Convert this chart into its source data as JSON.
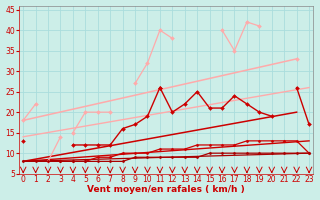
{
  "background_color": "#cceee8",
  "grid_color": "#aadddd",
  "xlabel": "Vent moyen/en rafales ( km/h )",
  "xlabel_color": "#cc0000",
  "tick_color": "#cc0000",
  "fontsize_xlabel": 6.5,
  "fontsize_ticks": 5.5,
  "ylim": [
    5,
    46
  ],
  "xlim": [
    -0.3,
    23.3
  ],
  "yticks": [
    5,
    10,
    15,
    20,
    25,
    30,
    35,
    40,
    45
  ],
  "xticks": [
    0,
    1,
    2,
    3,
    4,
    5,
    6,
    7,
    8,
    9,
    10,
    11,
    12,
    13,
    14,
    15,
    16,
    17,
    18,
    19,
    20,
    21,
    22,
    23
  ],
  "x": [
    0,
    1,
    2,
    3,
    4,
    5,
    6,
    7,
    8,
    9,
    10,
    11,
    12,
    13,
    14,
    15,
    16,
    17,
    18,
    19,
    20,
    21,
    22,
    23
  ],
  "series": [
    {
      "color": "#ffaaaa",
      "lw": 0.9,
      "ms": 2.0,
      "y": [
        18,
        22,
        null,
        null,
        15,
        20,
        20,
        20,
        null,
        27,
        32,
        40,
        38,
        null,
        null,
        null,
        40,
        35,
        42,
        41,
        null,
        null,
        33,
        null
      ]
    },
    {
      "color": "#ffaaaa",
      "lw": 0.9,
      "ms": 2.0,
      "y": [
        null,
        null,
        8,
        14,
        null,
        null,
        null,
        null,
        null,
        null,
        null,
        null,
        null,
        null,
        null,
        null,
        null,
        null,
        null,
        null,
        null,
        null,
        null,
        null
      ]
    },
    {
      "color": "#ffaaaa",
      "lw": 1.0,
      "ms": 0,
      "y": [
        9,
        null,
        null,
        null,
        null,
        null,
        null,
        null,
        null,
        null,
        null,
        null,
        null,
        null,
        null,
        null,
        null,
        null,
        null,
        null,
        null,
        null,
        33,
        null
      ]
    },
    {
      "color": "#cc0000",
      "lw": 1.0,
      "ms": 2.0,
      "y": [
        null,
        null,
        null,
        null,
        null,
        null,
        null,
        null,
        null,
        null,
        null,
        26,
        20,
        22,
        25,
        21,
        21,
        24,
        22,
        20,
        19,
        null,
        26,
        17
      ]
    },
    {
      "color": "#cc0000",
      "lw": 1.0,
      "ms": 2.0,
      "y": [
        13,
        null,
        null,
        null,
        12,
        12,
        12,
        12,
        16,
        17,
        19,
        26,
        null,
        null,
        null,
        null,
        null,
        null,
        null,
        null,
        null,
        null,
        null,
        null
      ]
    },
    {
      "color": "#dd2222",
      "lw": 0.9,
      "ms": 0,
      "y": [
        8,
        null,
        null,
        null,
        null,
        null,
        null,
        null,
        null,
        null,
        null,
        null,
        null,
        null,
        null,
        null,
        null,
        null,
        null,
        null,
        null,
        null,
        20,
        null
      ]
    },
    {
      "color": "#cc0000",
      "lw": 0.9,
      "ms": 1.5,
      "y": [
        null,
        null,
        null,
        8,
        8,
        8,
        9,
        9,
        10,
        10,
        10,
        11,
        11,
        11,
        12,
        12,
        12,
        12,
        13,
        13,
        13,
        13,
        13,
        10
      ]
    },
    {
      "color": "#aa0000",
      "lw": 0.9,
      "ms": 1.5,
      "y": [
        8,
        8,
        8,
        8,
        8,
        8,
        8,
        8,
        8,
        9,
        9,
        9,
        9,
        9,
        9,
        10,
        10,
        10,
        10,
        10,
        10,
        10,
        10,
        10
      ]
    }
  ],
  "trend_lines": [
    {
      "color": "#ffaaaa",
      "lw": 1.1,
      "alpha": 1.0,
      "x0": 0,
      "x1": 22,
      "y0": 18,
      "y1": 33
    },
    {
      "color": "#ffaaaa",
      "lw": 1.0,
      "alpha": 1.0,
      "x0": 0,
      "x1": 23,
      "y0": 14,
      "y1": 26
    },
    {
      "color": "#cc0000",
      "lw": 1.1,
      "alpha": 1.0,
      "x0": 0,
      "x1": 22,
      "y0": 8,
      "y1": 20
    },
    {
      "color": "#cc0000",
      "lw": 1.0,
      "alpha": 1.0,
      "x0": 0,
      "x1": 23,
      "y0": 8,
      "y1": 13
    },
    {
      "color": "#aa0000",
      "lw": 0.9,
      "alpha": 1.0,
      "x0": 0,
      "x1": 23,
      "y0": 8,
      "y1": 10
    }
  ]
}
